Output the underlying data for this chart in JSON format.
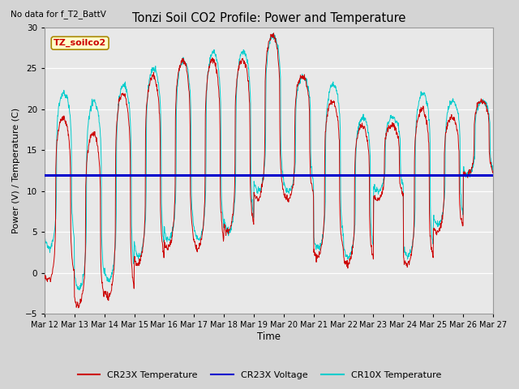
{
  "title": "Tonzi Soil CO2 Profile: Power and Temperature",
  "top_left_note": "No data for f_T2_BattV",
  "ylabel": "Power (V) / Temperature (C)",
  "xlabel": "Time",
  "ylim": [
    -5,
    30
  ],
  "xlim": [
    0,
    15
  ],
  "fig_bg_color": "#d4d4d4",
  "plot_bg_color": "#e8e8e8",
  "legend_label_box": "TZ_soilco2",
  "voltage_value": 12.0,
  "tick_labels": [
    "Mar 12",
    "Mar 13",
    "Mar 14",
    "Mar 15",
    "Mar 16",
    "Mar 17",
    "Mar 18",
    "Mar 19",
    "Mar 20",
    "Mar 21",
    "Mar 22",
    "Mar 23",
    "Mar 24",
    "Mar 25",
    "Mar 26",
    "Mar 27"
  ],
  "cr23x_color": "#cc0000",
  "cr10x_color": "#00cccc",
  "voltage_color": "#0000cc",
  "yticks": [
    -5,
    0,
    5,
    10,
    15,
    20,
    25,
    30
  ]
}
